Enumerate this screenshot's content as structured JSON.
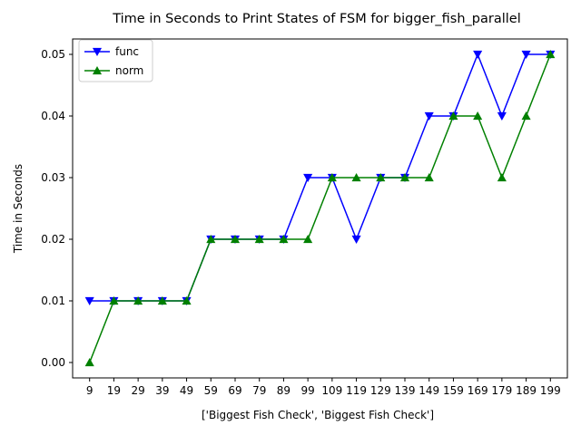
{
  "chart_data": {
    "type": "line",
    "title": "Time in Seconds to Print States of FSM for bigger_fish_parallel",
    "xlabel": "['Biggest Fish Check', 'Biggest Fish Check']",
    "ylabel": "Time in Seconds",
    "categories": [
      "9",
      "19",
      "29",
      "39",
      "49",
      "59",
      "69",
      "79",
      "89",
      "99",
      "109",
      "119",
      "129",
      "139",
      "149",
      "159",
      "169",
      "179",
      "189",
      "199"
    ],
    "ylim": [
      -0.0025,
      0.0525
    ],
    "yticks": [
      "0.00",
      "0.01",
      "0.02",
      "0.03",
      "0.04",
      "0.05"
    ],
    "ytick_values": [
      0,
      0.01,
      0.02,
      0.03,
      0.04,
      0.05
    ],
    "grid": false,
    "legend_position": "upper-left",
    "series": [
      {
        "name": "func",
        "color": "#0000ff",
        "marker": "triangle-down",
        "values": [
          0.01,
          0.01,
          0.01,
          0.01,
          0.01,
          0.02,
          0.02,
          0.02,
          0.02,
          0.03,
          0.03,
          0.02,
          0.03,
          0.03,
          0.04,
          0.04,
          0.05,
          0.04,
          0.05,
          0.05
        ]
      },
      {
        "name": "norm",
        "color": "#008000",
        "marker": "triangle-up",
        "values": [
          0.0,
          0.01,
          0.01,
          0.01,
          0.01,
          0.02,
          0.02,
          0.02,
          0.02,
          0.02,
          0.03,
          0.03,
          0.03,
          0.03,
          0.03,
          0.04,
          0.04,
          0.03,
          0.04,
          0.05
        ]
      }
    ]
  }
}
